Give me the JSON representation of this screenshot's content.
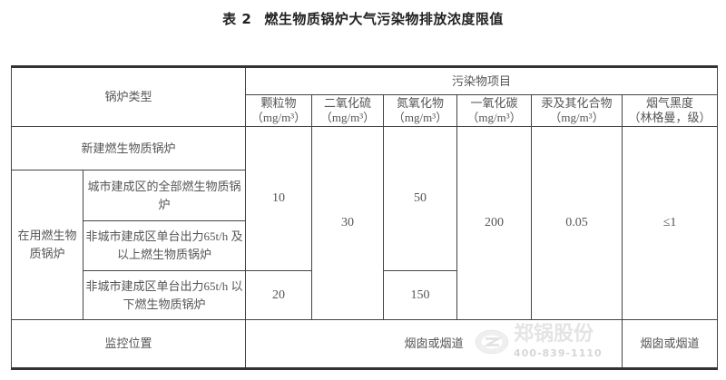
{
  "title": {
    "number": "表 2",
    "text": "燃生物质锅炉大气污染物排放浓度限值"
  },
  "table": {
    "boiler_type_header": "锅炉类型",
    "pollutant_group_header": "污染物项目",
    "columns": [
      {
        "name": "颗粒物",
        "unit": "（mg/m³）"
      },
      {
        "name": "二氧化硫",
        "unit": "（mg/m³）"
      },
      {
        "name": "氮氧化物",
        "unit": "（mg/m³）"
      },
      {
        "name": "一氧化碳",
        "unit": "（mg/m³）"
      },
      {
        "name": "汞及其化合物",
        "unit": "（mg/m³）"
      },
      {
        "name": "烟气黑度",
        "unit": "（林格曼，级）"
      }
    ],
    "new_boiler": "新建燃生物质锅炉",
    "in_use_boiler": "在用燃生物质锅炉",
    "in_use_subtypes": [
      "城市建成区的全部燃生物质锅炉",
      "非城市建成区单台出力65t/h 及以上燃生物质锅炉",
      "非城市建成区单台出力65t/h 以下燃生物质锅炉"
    ],
    "values": {
      "pm_upper": "10",
      "pm_lower": "20",
      "so2": "30",
      "nox_upper": "50",
      "nox_lower": "150",
      "co": "200",
      "hg": "0.05",
      "smoke": "≤1"
    },
    "monitor_label": "监控位置",
    "monitor_value": "烟囱或烟道",
    "monitor_value_smoke": "烟囱或烟道"
  },
  "watermark": {
    "brand": "郑锅股份",
    "phone": "400-839-1110"
  }
}
